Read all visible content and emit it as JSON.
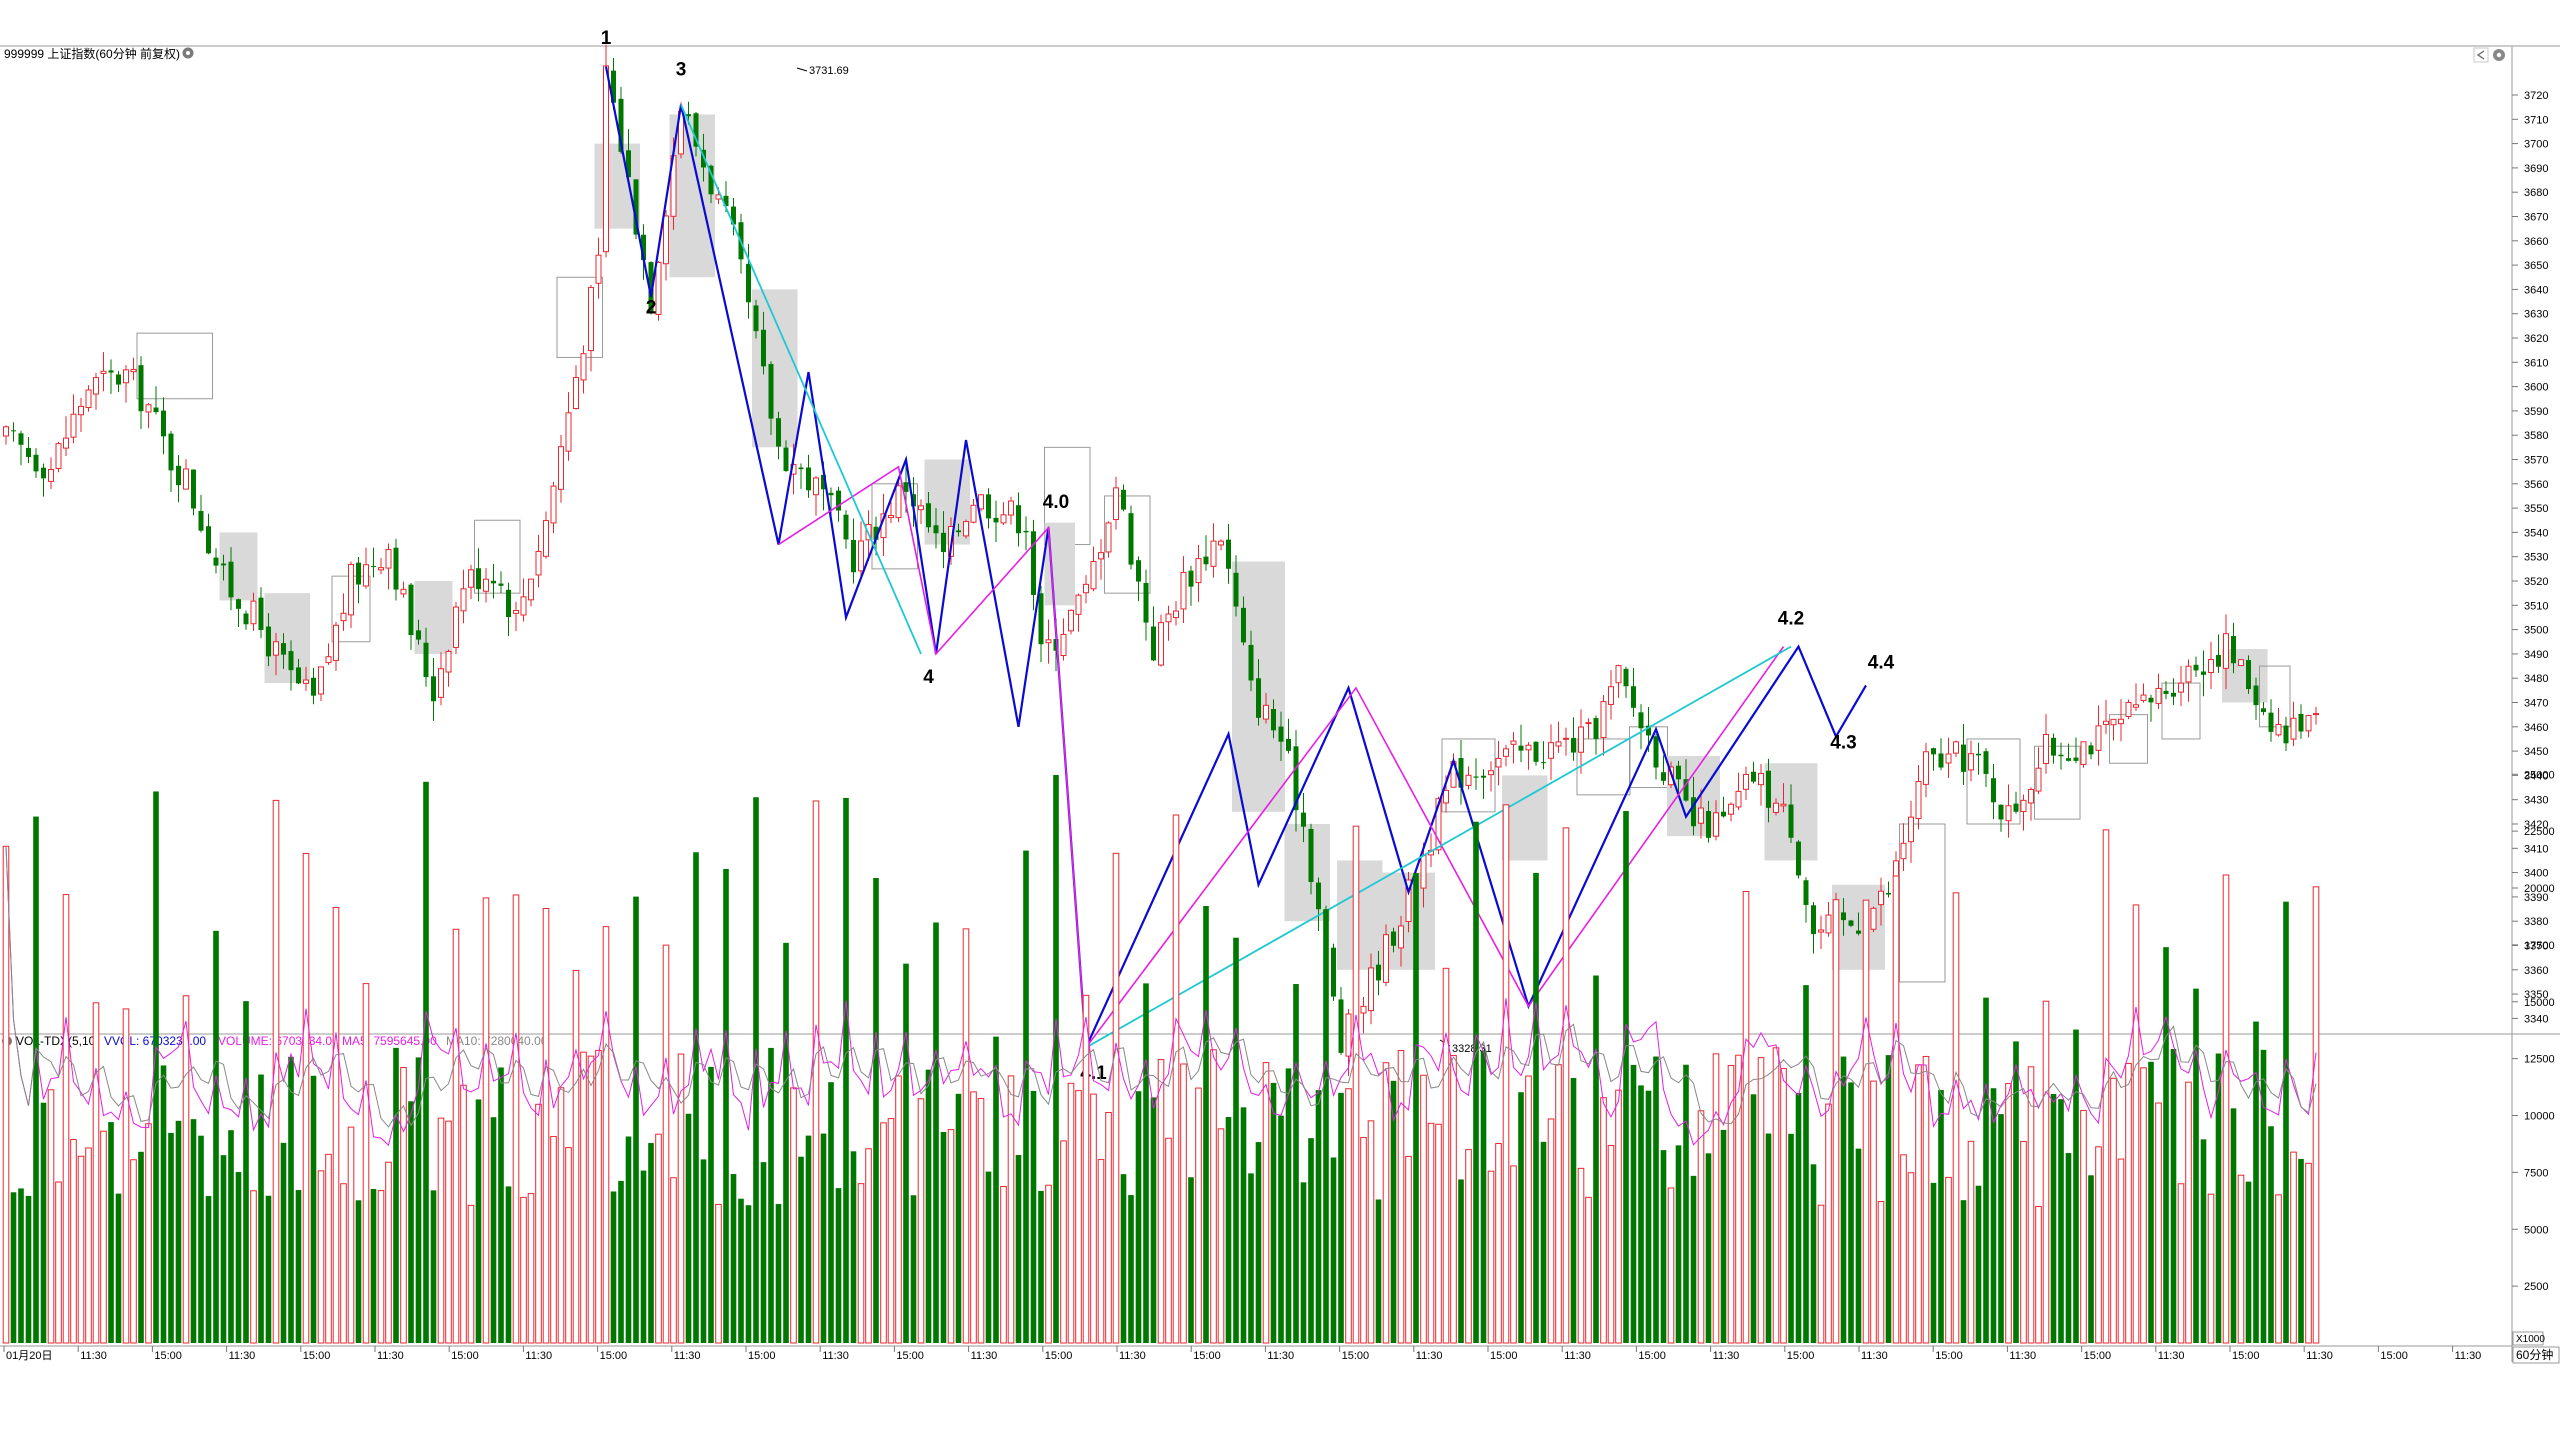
{
  "main_chart": {
    "title": "999999 上证指数(60分钟 前复权)",
    "price_axis_labels": [
      "3720",
      "3710",
      "3700",
      "3690",
      "3680",
      "3670",
      "3660",
      "3650",
      "3640",
      "3630",
      "3620",
      "3610",
      "3600",
      "3590",
      "3580",
      "3570",
      "3560",
      "3550",
      "3540",
      "3530",
      "3520",
      "3510",
      "3500",
      "3490",
      "3480",
      "3470",
      "3460",
      "3450",
      "3440",
      "3430",
      "3420",
      "3410",
      "3400",
      "3390",
      "3380",
      "3370",
      "3360",
      "3350",
      "3340"
    ],
    "high_marker": "3731.69",
    "low_marker": "3328.31",
    "wave_labels": [
      {
        "text": "1",
        "price": 3741
      },
      {
        "text": "2",
        "price": 3630
      },
      {
        "text": "3",
        "price": 3728
      },
      {
        "text": "4",
        "price": 3478
      },
      {
        "text": "4.0",
        "price": 3550
      },
      {
        "text": "4.1",
        "price": 3315
      },
      {
        "text": "4.2",
        "price": 3502
      },
      {
        "text": "4.3",
        "price": 3451
      },
      {
        "text": "4.4",
        "price": 3484
      }
    ],
    "colors": {
      "up": "#e8282f",
      "down": "#007800",
      "wave_blue": "#0a0ad2",
      "wave_magenta": "#e61ee6",
      "wave_cyan": "#1ec8d2"
    }
  },
  "volume_panel": {
    "indicator": "VOL-TDX(5,10)",
    "vvol": "VVOL: 6703234.00",
    "volume": "VOLUME: 6703234.00",
    "ma5": "MA5: 7595645.00",
    "ma10": "MA10: 7280040.00",
    "axis_labels": [
      "25000",
      "22500",
      "20000",
      "17500",
      "15000",
      "12500",
      "10000",
      "7500",
      "5000",
      "2500"
    ],
    "unit": "X1000"
  },
  "time_axis": {
    "labels": [
      "01月20日",
      "11:30",
      "15:00",
      "11:30",
      "15:00",
      "11:30",
      "15:00",
      "11:30",
      "15:00",
      "11:30",
      "15:00",
      "11:30",
      "15:00",
      "11:30",
      "15:00",
      "11:30",
      "15:00",
      "11:30",
      "15:00",
      "11:30",
      "15:00",
      "11:30",
      "15:00",
      "11:30",
      "15:00",
      "11:30",
      "15:00",
      "11:30",
      "15:00",
      "11:30",
      "15:00",
      "11:30",
      "15:00",
      "11:30"
    ],
    "period": "60分钟"
  },
  "chart_data": {
    "type": "candlestick",
    "wave_points": [
      {
        "label": "1",
        "price": 3731.69
      },
      {
        "label": "2",
        "price": 3637
      },
      {
        "label": "3",
        "price": 3716
      },
      {
        "label": "4",
        "price": 3489
      },
      {
        "label": "4.0",
        "price": 3542
      },
      {
        "label": "4.1",
        "price": 3328.31
      },
      {
        "label": "4.2",
        "price": 3493
      },
      {
        "label": "4.3",
        "price": 3456
      },
      {
        "label": "4.4",
        "price": 3477
      }
    ],
    "price_range": [
      3330,
      3730
    ],
    "volume_range": [
      0,
      27000
    ]
  }
}
